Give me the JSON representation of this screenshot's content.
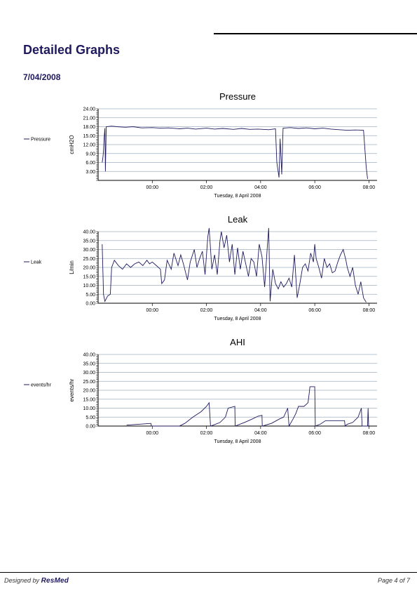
{
  "header": {
    "title": "Detailed Graphs",
    "date": "7/04/2008"
  },
  "footer": {
    "designed_by": "Designed by",
    "brand": "ResMed",
    "page": "Page 4 of 7"
  },
  "colors": {
    "title": "#1f1a5e",
    "series": "#1f1a5e",
    "grid": "#9fb0c0"
  },
  "chart_data": [
    {
      "type": "line",
      "title": "Pressure",
      "ylabel": "cmH2O",
      "xlabel": "Tuesday, 8 April 2008",
      "legend": "Pressure",
      "legend_position": "left",
      "grid": true,
      "ylim": [
        0,
        24
      ],
      "y_ticks": [
        "24.00",
        "21.00",
        "18.00",
        "15.00",
        "12.00",
        "9.00",
        "6.00",
        "3.00"
      ],
      "y_tick_values": [
        24,
        21,
        18,
        15,
        12,
        9,
        6,
        3
      ],
      "y_gridlines": [
        3,
        6,
        9,
        12,
        15,
        18,
        21,
        24
      ],
      "xlim": [
        22.0,
        32.3
      ],
      "x_ticks": [
        "00:00",
        "02:00",
        "04:00",
        "06:00",
        "08:00"
      ],
      "x_tick_values": [
        24,
        26,
        28,
        30,
        32
      ],
      "series": [
        {
          "points": [
            [
              22.15,
              6
            ],
            [
              22.18,
              8
            ],
            [
              22.2,
              10
            ],
            [
              22.22,
              14
            ],
            [
              22.25,
              17.5
            ],
            [
              22.27,
              3
            ],
            [
              22.3,
              18
            ],
            [
              22.5,
              18.2
            ],
            [
              22.7,
              18
            ],
            [
              23,
              17.8
            ],
            [
              23.3,
              18
            ],
            [
              23.6,
              17.6
            ],
            [
              24,
              17.7
            ],
            [
              24.3,
              17.5
            ],
            [
              24.6,
              17.6
            ],
            [
              25,
              17.3
            ],
            [
              25.3,
              17.5
            ],
            [
              25.6,
              17.2
            ],
            [
              26,
              17.5
            ],
            [
              26.3,
              17.2
            ],
            [
              26.6,
              17.4
            ],
            [
              27,
              17.1
            ],
            [
              27.3,
              17.4
            ],
            [
              27.6,
              17.1
            ],
            [
              27.9,
              17.2
            ],
            [
              28.3,
              17
            ],
            [
              28.55,
              17.3
            ],
            [
              28.6,
              6
            ],
            [
              28.68,
              1
            ],
            [
              28.72,
              14
            ],
            [
              28.78,
              2
            ],
            [
              28.83,
              17.5
            ],
            [
              29.1,
              17.7
            ],
            [
              29.4,
              17.4
            ],
            [
              29.7,
              17.6
            ],
            [
              30,
              17.3
            ],
            [
              30.3,
              17.5
            ],
            [
              30.6,
              17.2
            ],
            [
              30.9,
              17
            ],
            [
              31.2,
              16.8
            ],
            [
              31.5,
              16.9
            ],
            [
              31.8,
              16.8
            ],
            [
              31.9,
              4.5
            ],
            [
              31.95,
              0.5
            ]
          ]
        }
      ]
    },
    {
      "type": "line",
      "title": "Leak",
      "ylabel": "L/min",
      "xlabel": "Tuesday, 8 April 2008",
      "legend": "Leak",
      "legend_position": "left",
      "grid": true,
      "ylim": [
        0,
        40
      ],
      "y_ticks": [
        "40.00",
        "35.00",
        "30.00",
        "25.00",
        "20.00",
        "15.00",
        "10.00",
        "5.00",
        "0.00"
      ],
      "y_tick_values": [
        40,
        35,
        30,
        25,
        20,
        15,
        10,
        5,
        0
      ],
      "y_gridlines": [
        5,
        10,
        15,
        20,
        25,
        30,
        35,
        40
      ],
      "xlim": [
        22.0,
        32.3
      ],
      "x_ticks": [
        "00:00",
        "02:00",
        "04:00",
        "06:00",
        "08:00"
      ],
      "x_tick_values": [
        24,
        26,
        28,
        30,
        32
      ],
      "series": [
        {
          "points": [
            [
              22.15,
              33
            ],
            [
              22.2,
              5
            ],
            [
              22.25,
              1
            ],
            [
              22.35,
              4
            ],
            [
              22.45,
              5
            ],
            [
              22.5,
              20
            ],
            [
              22.6,
              24
            ],
            [
              22.75,
              21
            ],
            [
              22.9,
              19
            ],
            [
              23.05,
              22
            ],
            [
              23.2,
              20
            ],
            [
              23.35,
              22
            ],
            [
              23.5,
              23
            ],
            [
              23.65,
              21
            ],
            [
              23.8,
              24
            ],
            [
              23.9,
              22
            ],
            [
              24,
              23
            ],
            [
              24.15,
              21
            ],
            [
              24.3,
              19
            ],
            [
              24.35,
              11
            ],
            [
              24.45,
              13
            ],
            [
              24.55,
              24
            ],
            [
              24.7,
              19
            ],
            [
              24.8,
              28
            ],
            [
              24.95,
              21
            ],
            [
              25.05,
              27
            ],
            [
              25.15,
              22
            ],
            [
              25.3,
              13
            ],
            [
              25.4,
              23
            ],
            [
              25.55,
              30
            ],
            [
              25.65,
              20
            ],
            [
              25.75,
              25
            ],
            [
              25.85,
              29
            ],
            [
              25.95,
              16
            ],
            [
              26.05,
              37
            ],
            [
              26.1,
              42
            ],
            [
              26.2,
              19
            ],
            [
              26.3,
              27
            ],
            [
              26.4,
              16
            ],
            [
              26.5,
              35
            ],
            [
              26.55,
              40
            ],
            [
              26.65,
              31
            ],
            [
              26.75,
              38
            ],
            [
              26.85,
              23
            ],
            [
              26.95,
              33
            ],
            [
              27.05,
              16
            ],
            [
              27.15,
              31
            ],
            [
              27.25,
              19
            ],
            [
              27.35,
              29
            ],
            [
              27.45,
              22
            ],
            [
              27.55,
              15
            ],
            [
              27.65,
              25
            ],
            [
              27.75,
              23
            ],
            [
              27.85,
              15
            ],
            [
              27.95,
              33
            ],
            [
              28.05,
              26
            ],
            [
              28.15,
              9
            ],
            [
              28.25,
              32
            ],
            [
              28.3,
              42
            ],
            [
              28.35,
              1
            ],
            [
              28.45,
              19
            ],
            [
              28.55,
              11
            ],
            [
              28.65,
              8
            ],
            [
              28.75,
              12
            ],
            [
              28.85,
              9
            ],
            [
              28.95,
              11
            ],
            [
              29.05,
              14
            ],
            [
              29.15,
              9
            ],
            [
              29.25,
              27
            ],
            [
              29.35,
              3
            ],
            [
              29.45,
              11
            ],
            [
              29.55,
              20
            ],
            [
              29.65,
              22
            ],
            [
              29.75,
              18
            ],
            [
              29.85,
              28
            ],
            [
              29.95,
              23
            ],
            [
              30,
              33
            ],
            [
              30.05,
              25
            ],
            [
              30.15,
              20
            ],
            [
              30.25,
              14
            ],
            [
              30.35,
              25
            ],
            [
              30.45,
              20
            ],
            [
              30.55,
              22
            ],
            [
              30.65,
              17
            ],
            [
              30.75,
              18
            ],
            [
              30.85,
              23
            ],
            [
              30.95,
              27
            ],
            [
              31.05,
              30
            ],
            [
              31.15,
              24
            ],
            [
              31.2,
              20
            ],
            [
              31.3,
              15
            ],
            [
              31.4,
              20
            ],
            [
              31.5,
              10
            ],
            [
              31.6,
              5
            ],
            [
              31.7,
              12
            ],
            [
              31.8,
              3
            ],
            [
              31.9,
              0.5
            ]
          ]
        }
      ]
    },
    {
      "type": "line",
      "title": "AHI",
      "ylabel": "events/hr",
      "xlabel": "Tuesday, 8 April 2008",
      "legend": "events/hr",
      "legend_position": "left",
      "grid": true,
      "ylim": [
        0,
        40
      ],
      "y_ticks": [
        "40.00",
        "35.00",
        "30.00",
        "25.00",
        "20.00",
        "15.00",
        "10.00",
        "5.00",
        "0.00"
      ],
      "y_tick_values": [
        40,
        35,
        30,
        25,
        20,
        15,
        10,
        5,
        0
      ],
      "y_gridlines": [
        5,
        10,
        15,
        20,
        25,
        30,
        35,
        40
      ],
      "xlim": [
        22.0,
        32.3
      ],
      "x_ticks": [
        "00:00",
        "02:00",
        "04:00",
        "06:00",
        "08:00"
      ],
      "x_tick_values": [
        24,
        26,
        28,
        30,
        32
      ],
      "series": [
        {
          "points": [
            [
              23.05,
              0.5
            ],
            [
              23.5,
              1
            ],
            [
              23.95,
              1.5
            ],
            [
              23.97,
              0
            ],
            [
              25,
              0
            ],
            [
              25.2,
              1.5
            ],
            [
              25.5,
              5
            ],
            [
              25.8,
              8
            ],
            [
              26,
              11
            ],
            [
              26.1,
              13
            ],
            [
              26.15,
              0
            ],
            [
              26.25,
              0.5
            ],
            [
              26.5,
              2
            ],
            [
              26.7,
              5
            ],
            [
              26.8,
              10
            ],
            [
              27.05,
              11
            ],
            [
              27.06,
              0
            ],
            [
              27.4,
              2
            ],
            [
              27.7,
              4
            ],
            [
              27.9,
              5.5
            ],
            [
              28.05,
              6
            ],
            [
              28.06,
              0
            ],
            [
              28.4,
              1.5
            ],
            [
              28.7,
              4
            ],
            [
              28.85,
              5
            ],
            [
              29.0,
              10
            ],
            [
              29.05,
              0
            ],
            [
              29.2,
              4
            ],
            [
              29.3,
              7
            ],
            [
              29.4,
              11
            ],
            [
              29.6,
              11
            ],
            [
              29.75,
              13
            ],
            [
              29.8,
              19
            ],
            [
              29.82,
              22
            ],
            [
              30,
              22
            ],
            [
              30.02,
              0
            ],
            [
              30.2,
              1
            ],
            [
              30.4,
              3
            ],
            [
              30.9,
              3
            ],
            [
              31.1,
              3
            ],
            [
              31.12,
              0
            ],
            [
              31.2,
              1
            ],
            [
              31.4,
              2
            ],
            [
              31.6,
              5
            ],
            [
              31.72,
              10
            ],
            [
              31.75,
              0
            ],
            [
              31.95,
              0
            ],
            [
              31.97,
              10
            ],
            [
              31.99,
              0
            ]
          ]
        }
      ]
    }
  ]
}
